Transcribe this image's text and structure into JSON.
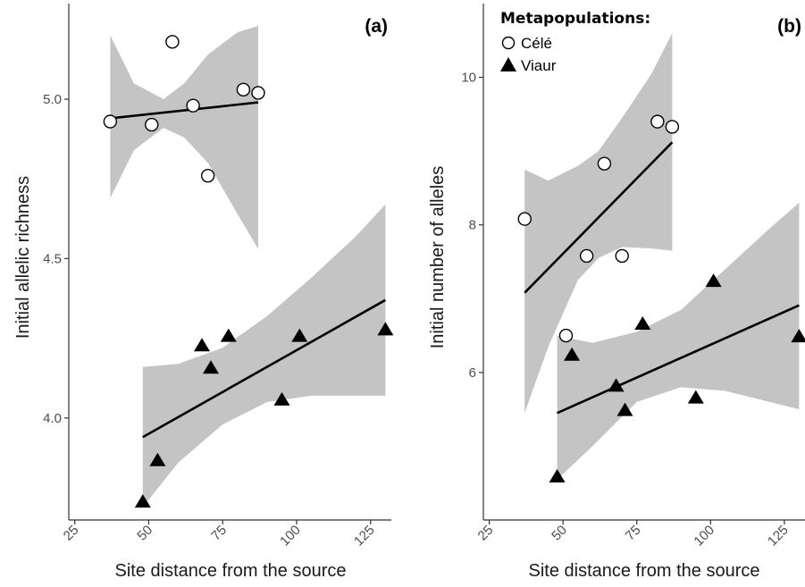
{
  "chart_data": [
    {
      "type": "scatter",
      "panel_label": "(a)",
      "xlabel": "Site distance from the source",
      "ylabel": "Initial allelic richness",
      "xlim": [
        23,
        132
      ],
      "ylim": [
        3.68,
        5.3
      ],
      "xticks": [
        25,
        50,
        75,
        100,
        125
      ],
      "yticks": [
        4.0,
        4.5,
        5.0
      ],
      "ytick_labels": [
        "4.0",
        "4.5",
        "5.0"
      ],
      "grid": false,
      "series": [
        {
          "name": "Célé",
          "marker": "circle",
          "x": [
            37,
            51,
            58,
            65,
            70,
            82,
            87
          ],
          "y": [
            4.93,
            4.92,
            5.18,
            4.98,
            4.76,
            5.03,
            5.02
          ],
          "fit": {
            "x": [
              37,
              87
            ],
            "y": [
              4.94,
              4.99
            ]
          },
          "band": {
            "x": [
              37,
              45,
              55,
              62,
              70,
              80,
              87
            ],
            "lower": [
              4.69,
              4.84,
              4.91,
              4.88,
              4.8,
              4.64,
              4.53
            ],
            "upper": [
              5.2,
              5.05,
              5.0,
              5.05,
              5.14,
              5.21,
              5.23
            ]
          }
        },
        {
          "name": "Viaur",
          "marker": "triangle",
          "x": [
            48,
            53,
            68,
            71,
            77,
            95,
            101,
            130
          ],
          "y": [
            3.74,
            3.87,
            4.23,
            4.16,
            4.26,
            4.06,
            4.26,
            4.28
          ],
          "fit": {
            "x": [
              48,
              130
            ],
            "y": [
              3.94,
              4.37
            ]
          },
          "band": {
            "x": [
              48,
              60,
              75,
              90,
              105,
              120,
              130
            ],
            "lower": [
              3.72,
              3.86,
              3.98,
              4.05,
              4.07,
              4.07,
              4.07
            ],
            "upper": [
              4.16,
              4.17,
              4.22,
              4.32,
              4.44,
              4.57,
              4.67
            ]
          }
        }
      ]
    },
    {
      "type": "scatter",
      "panel_label": "(b)",
      "xlabel": "Site distance from the source",
      "ylabel": "Initial number of alleles",
      "xlim": [
        23,
        132
      ],
      "ylim": [
        4.0,
        11.0
      ],
      "xticks": [
        25,
        50,
        75,
        100,
        125
      ],
      "yticks": [
        6,
        8,
        10
      ],
      "ytick_labels": [
        "6",
        "8",
        "10"
      ],
      "grid": false,
      "legend": {
        "title": "Metapopulations:",
        "placement": "top-left",
        "entries": [
          "Célé",
          "Viaur"
        ]
      },
      "series": [
        {
          "name": "Célé",
          "marker": "circle",
          "x": [
            37,
            51,
            58,
            64,
            70,
            82,
            87
          ],
          "y": [
            8.08,
            6.5,
            7.58,
            8.83,
            7.58,
            9.4,
            9.33
          ],
          "fit": {
            "x": [
              37,
              87
            ],
            "y": [
              7.08,
              9.12
            ]
          },
          "band": {
            "x": [
              37,
              45,
              55,
              62,
              70,
              80,
              87
            ],
            "lower": [
              5.45,
              6.35,
              7.25,
              7.55,
              7.7,
              7.68,
              7.65
            ],
            "upper": [
              8.75,
              8.6,
              8.8,
              9.0,
              9.45,
              10.05,
              10.6
            ]
          }
        },
        {
          "name": "Viaur",
          "marker": "triangle",
          "x": [
            48,
            53,
            68,
            71,
            77,
            95,
            101,
            130
          ],
          "y": [
            4.6,
            6.25,
            5.83,
            5.5,
            6.67,
            5.67,
            7.25,
            6.5
          ],
          "fit": {
            "x": [
              48,
              130
            ],
            "y": [
              5.45,
              6.91
            ]
          },
          "band": {
            "x": [
              48,
              60,
              75,
              90,
              105,
              120,
              130
            ],
            "lower": [
              4.55,
              5.0,
              5.6,
              5.8,
              5.75,
              5.6,
              5.5
            ],
            "upper": [
              6.5,
              6.4,
              6.55,
              6.85,
              7.4,
              7.95,
              8.3
            ]
          }
        }
      ]
    }
  ],
  "colors": {
    "band": "#c4c4c4",
    "line": "#000000",
    "marker_open_fill": "#ffffff",
    "marker_solid_fill": "#000000",
    "axis": "#333333"
  }
}
